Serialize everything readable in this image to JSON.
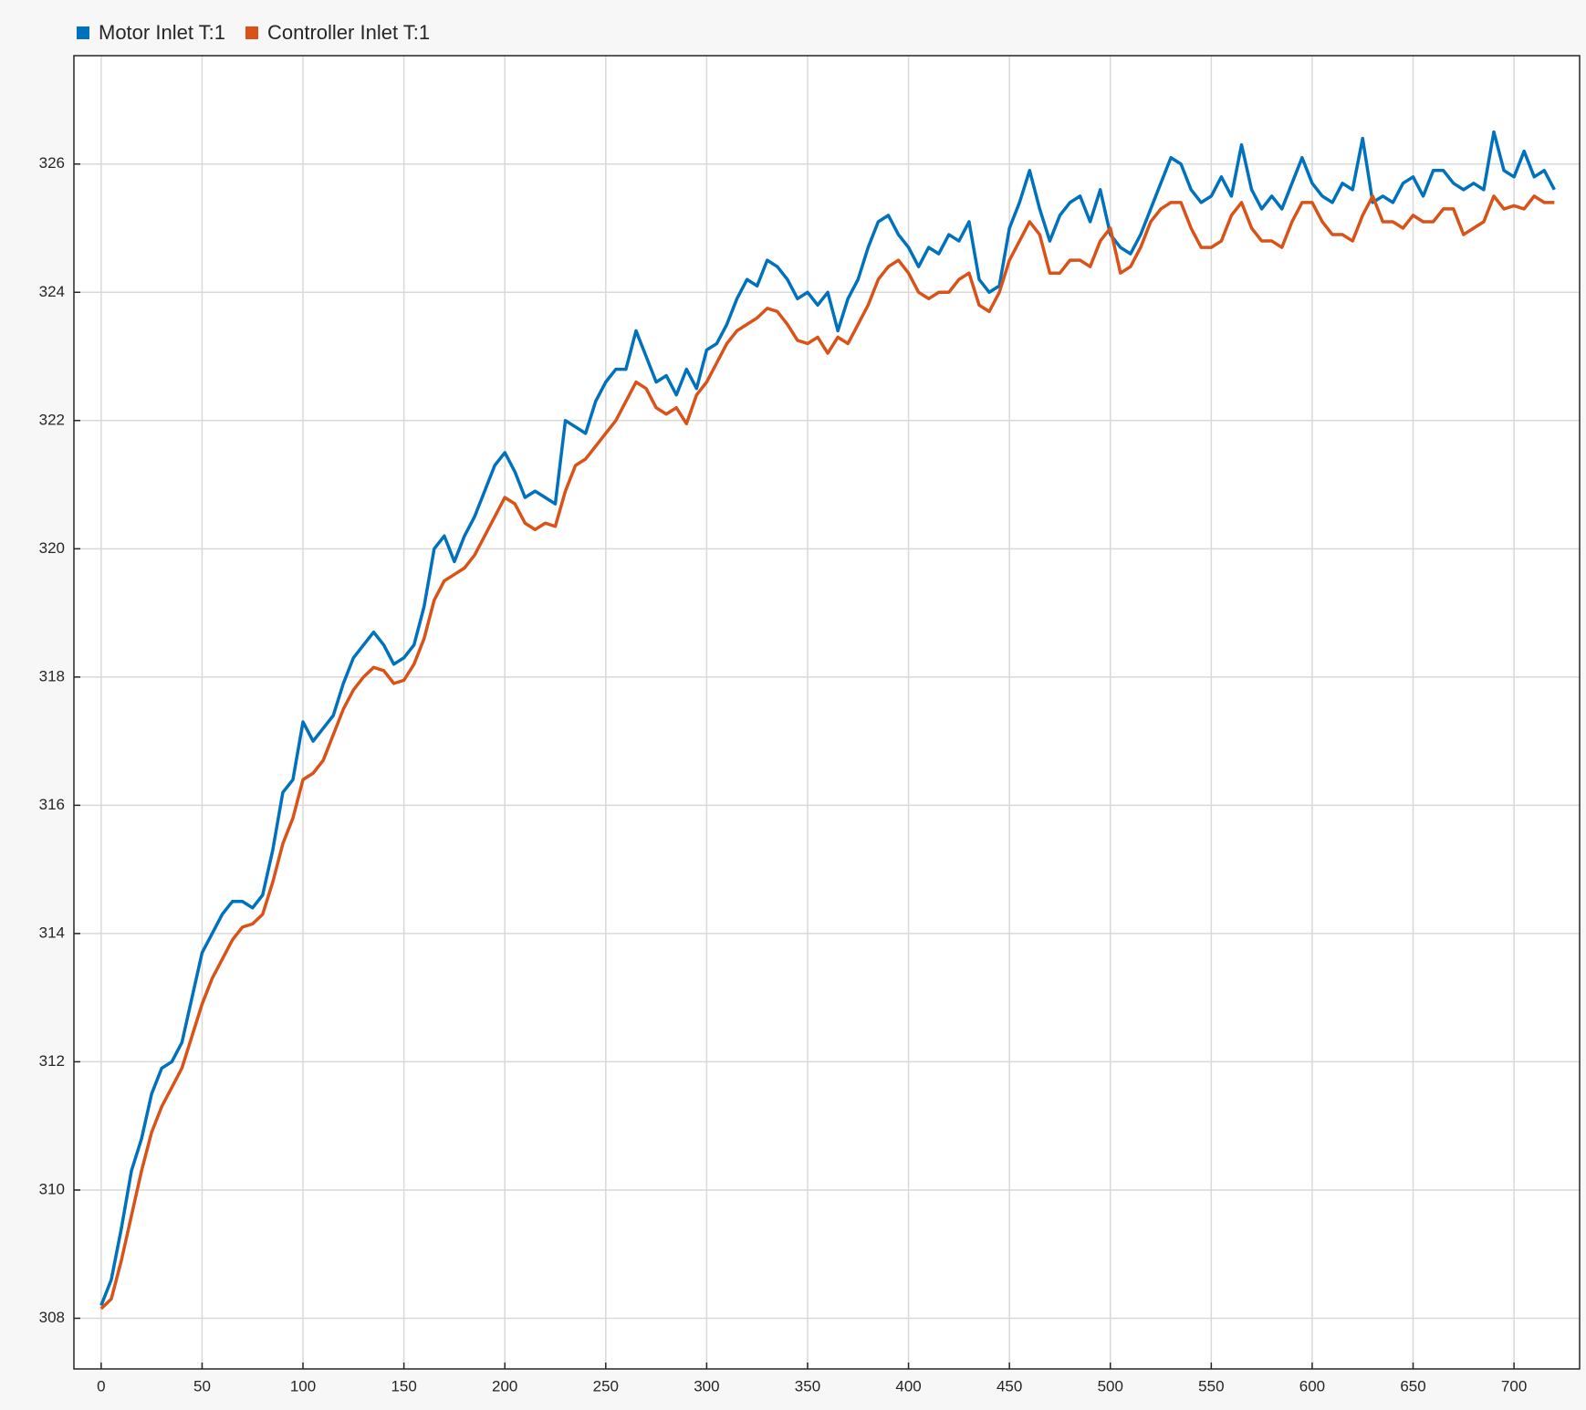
{
  "chart_data": {
    "type": "line",
    "x": [
      0,
      5,
      10,
      15,
      20,
      25,
      30,
      35,
      40,
      45,
      50,
      55,
      60,
      65,
      70,
      75,
      80,
      85,
      90,
      95,
      100,
      105,
      110,
      115,
      120,
      125,
      130,
      135,
      140,
      145,
      150,
      155,
      160,
      165,
      170,
      175,
      180,
      185,
      190,
      195,
      200,
      205,
      210,
      215,
      220,
      225,
      230,
      235,
      240,
      245,
      250,
      255,
      260,
      265,
      270,
      275,
      280,
      285,
      290,
      295,
      300,
      305,
      310,
      315,
      320,
      325,
      330,
      335,
      340,
      345,
      350,
      355,
      360,
      365,
      370,
      375,
      380,
      385,
      390,
      395,
      400,
      405,
      410,
      415,
      420,
      425,
      430,
      435,
      440,
      445,
      450,
      455,
      460,
      465,
      470,
      475,
      480,
      485,
      490,
      495,
      500,
      505,
      510,
      515,
      520,
      525,
      530,
      535,
      540,
      545,
      550,
      555,
      560,
      565,
      570,
      575,
      580,
      585,
      590,
      595,
      600,
      605,
      610,
      615,
      620,
      625,
      630,
      635,
      640,
      645,
      650,
      655,
      660,
      665,
      670,
      675,
      680,
      685,
      690,
      695,
      700,
      705,
      710,
      715,
      720
    ],
    "series": [
      {
        "name": "Motor Inlet T:1",
        "color": "#0072bd",
        "values": [
          308.2,
          308.6,
          309.4,
          310.3,
          310.8,
          311.5,
          311.9,
          312.0,
          312.3,
          313.0,
          313.7,
          314.0,
          314.3,
          314.5,
          314.5,
          314.4,
          314.6,
          315.3,
          316.2,
          316.4,
          317.3,
          317.0,
          317.2,
          317.4,
          317.9,
          318.3,
          318.5,
          318.7,
          318.5,
          318.2,
          318.3,
          318.5,
          319.1,
          320.0,
          320.2,
          319.8,
          320.2,
          320.5,
          320.9,
          321.3,
          321.5,
          321.2,
          320.8,
          320.9,
          320.8,
          320.7,
          322.0,
          321.9,
          321.8,
          322.3,
          322.6,
          322.8,
          322.8,
          323.4,
          323.0,
          322.6,
          322.7,
          322.4,
          322.8,
          322.5,
          323.1,
          323.2,
          323.5,
          323.9,
          324.2,
          324.1,
          324.5,
          324.4,
          324.2,
          323.9,
          324.0,
          323.8,
          324.0,
          323.4,
          323.9,
          324.2,
          324.7,
          325.1,
          325.2,
          324.9,
          324.7,
          324.4,
          324.7,
          324.6,
          324.9,
          324.8,
          325.1,
          324.2,
          324.0,
          324.1,
          325.0,
          325.4,
          325.9,
          325.3,
          324.8,
          325.2,
          325.4,
          325.5,
          325.1,
          325.6,
          324.9,
          324.7,
          324.6,
          324.9,
          325.3,
          325.7,
          326.1,
          326.0,
          325.6,
          325.4,
          325.5,
          325.8,
          325.5,
          326.3,
          325.6,
          325.3,
          325.5,
          325.3,
          325.7,
          326.1,
          325.7,
          325.5,
          325.4,
          325.7,
          325.6,
          326.4,
          325.4,
          325.5,
          325.4,
          325.7,
          325.8,
          325.5,
          325.9,
          325.9,
          325.7,
          325.6,
          325.7,
          325.6,
          326.5,
          325.9,
          325.8,
          326.2,
          325.8,
          325.9,
          325.6
        ]
      },
      {
        "name": "Controller Inlet T:1",
        "color": "#d95319",
        "values": [
          308.15,
          308.3,
          308.9,
          309.6,
          310.3,
          310.9,
          311.3,
          311.6,
          311.9,
          312.4,
          312.9,
          313.3,
          313.6,
          313.9,
          314.1,
          314.15,
          314.3,
          314.8,
          315.4,
          315.8,
          316.4,
          316.5,
          316.7,
          317.1,
          317.5,
          317.8,
          318.0,
          318.15,
          318.1,
          317.9,
          317.95,
          318.2,
          318.6,
          319.2,
          319.5,
          319.6,
          319.7,
          319.9,
          320.2,
          320.5,
          320.8,
          320.7,
          320.4,
          320.3,
          320.4,
          320.35,
          320.9,
          321.3,
          321.4,
          321.6,
          321.8,
          322.0,
          322.3,
          322.6,
          322.5,
          322.2,
          322.1,
          322.2,
          321.95,
          322.4,
          322.6,
          322.9,
          323.2,
          323.4,
          323.5,
          323.6,
          323.75,
          323.7,
          323.5,
          323.25,
          323.2,
          323.3,
          323.05,
          323.3,
          323.2,
          323.5,
          323.8,
          324.2,
          324.4,
          324.5,
          324.3,
          324.0,
          323.9,
          324.0,
          324.0,
          324.2,
          324.3,
          323.8,
          323.7,
          324.0,
          324.5,
          324.8,
          325.1,
          324.9,
          324.3,
          324.3,
          324.5,
          324.5,
          324.4,
          324.8,
          325.0,
          324.3,
          324.4,
          324.7,
          325.1,
          325.3,
          325.4,
          325.4,
          325.0,
          324.7,
          324.7,
          324.8,
          325.2,
          325.4,
          325.0,
          324.8,
          324.8,
          324.7,
          325.1,
          325.4,
          325.4,
          325.1,
          324.9,
          324.9,
          324.8,
          325.2,
          325.5,
          325.1,
          325.1,
          325.0,
          325.2,
          325.1,
          325.1,
          325.3,
          325.3,
          324.9,
          325.0,
          325.1,
          325.5,
          325.3,
          325.35,
          325.3,
          325.5,
          325.4,
          325.4
        ]
      }
    ],
    "xlim": [
      -13.5,
      732.5
    ],
    "ylim": [
      307.21,
      327.69
    ],
    "xticks": [
      0,
      50,
      100,
      150,
      200,
      250,
      300,
      350,
      400,
      450,
      500,
      550,
      600,
      650,
      700
    ],
    "yticks": [
      308,
      310,
      312,
      314,
      316,
      318,
      320,
      322,
      324,
      326
    ],
    "grid": true
  }
}
